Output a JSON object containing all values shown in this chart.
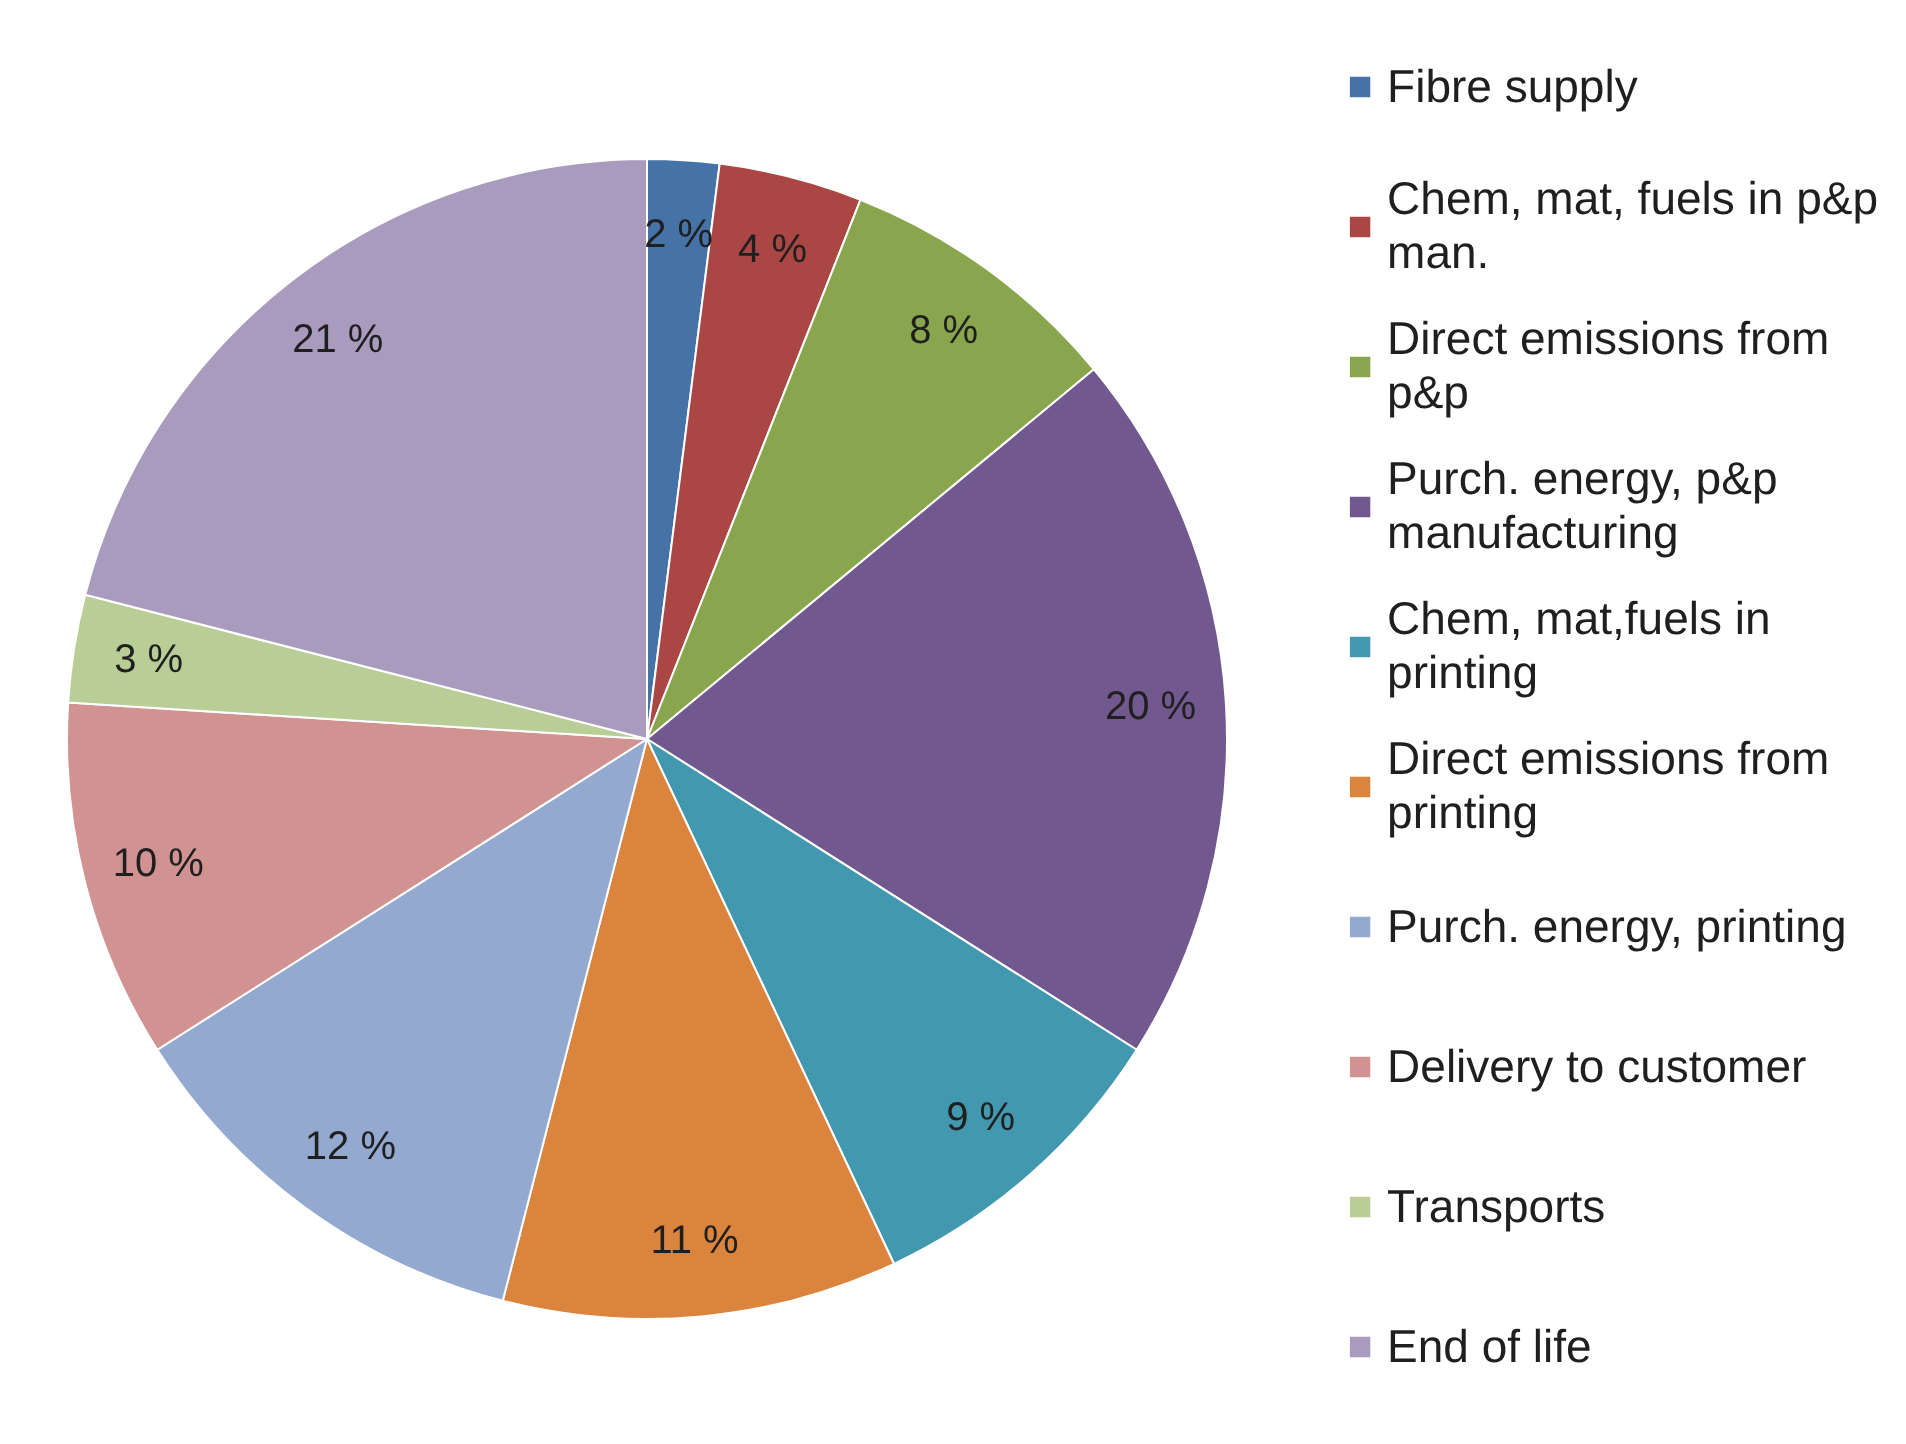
{
  "chart_data": {
    "type": "pie",
    "categories": [
      "Fibre supply",
      "Chem, mat, fuels in p&p man.",
      "Direct emissions from p&p",
      "Purch. energy, p&p manufacturing",
      "Chem, mat,fuels in printing",
      "Direct emissions from printing",
      "Purch. energy, printing",
      "Delivery to customer",
      "Transports",
      "End of life"
    ],
    "values": [
      2,
      4,
      8,
      20,
      9,
      11,
      12,
      10,
      3,
      21
    ],
    "colors": [
      "#4572a7",
      "#aa4643",
      "#89a54e",
      "#71588f",
      "#4198af",
      "#db843d",
      "#93a9cf",
      "#d19392",
      "#b9cd96",
      "#a99bbd"
    ],
    "value_labels": [
      "2 %",
      "4 %",
      "8 %",
      "20 %",
      "9 %",
      "11 %",
      "12 %",
      "10 %",
      "3 %",
      "21 %"
    ],
    "legend": "right"
  }
}
